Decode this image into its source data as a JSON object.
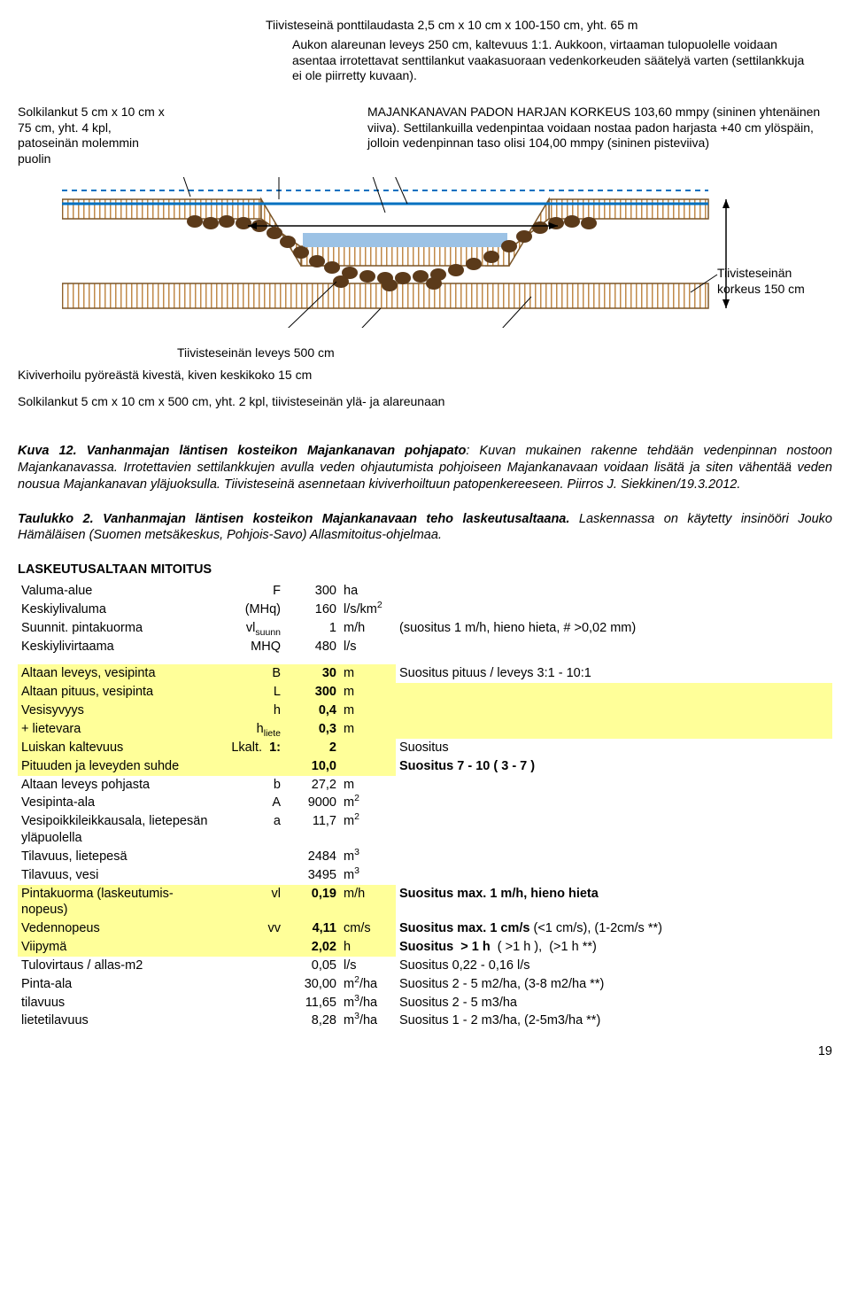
{
  "diagram": {
    "ann1": "Tiivisteseinä ponttilaudasta 2,5 cm x 10 cm x 100-150 cm, yht. 65 m",
    "ann2": "Aukon alareunan leveys 250 cm, kaltevuus 1:1. Aukkoon, virtaaman tulopuolelle voidaan asentaa irrotettavat senttilankut vaakasuoraan vedenkorkeuden säätelyä varten (settilankkuja ei ole piirretty kuvaan).",
    "ann3": "MAJANKANAVAN PADON HARJAN KORKEUS 103,60 mmpy (sininen yhtenäinen viiva). Settilankuilla vedenpintaa voidaan nostaa padon harjasta +40 cm ylöspäin, jolloin vedenpinnan taso olisi 104,00 mmpy (sininen pisteviiva)",
    "ann4": "Solkilankut 5 cm x 10 cm x 75 cm, yht. 4 kpl, patoseinän molemmin puolin",
    "ann5": "Tiivisteseinän korkeus 150 cm",
    "ann6": "Tiivisteseinän leveys 500 cm",
    "ann7": "Kiviverhoilu pyöreästä kivestä, kiven keskikoko 15 cm",
    "ann8": "Solkilankut 5 cm x 10 cm x 500 cm, yht. 2 kpl, tiivisteseinän ylä- ja alareunaan",
    "hatching_color": "#D29B5B",
    "water_color": "#0070C0",
    "rock_color": "#5B3A1A"
  },
  "caption1": {
    "label": "Kuva 12. Vanhanmajan läntisen kosteikon Majankanavan pohjapato",
    "text": ": Kuvan mukainen rakenne tehdään vedenpinnan nostoon Majankanavassa. Irrotettavien settilankkujen avulla veden ohjautumista pohjoiseen Majankanavaan voidaan lisätä ja siten vähentää veden nousua Majankanavan yläjuoksulla. Tiivisteseinä asennetaan kiviverhoiltuun patopenkereeseen. Piirros J. Siekkinen/19.3.2012."
  },
  "caption2": {
    "label": "Taulukko 2. Vanhanmajan läntisen kosteikon Majankanavaan teho laskeutusaltaana.",
    "text": " Laskennassa on käytetty insinööri Jouko Hämäläisen (Suomen metsäkeskus, Pohjois-Savo) Allasmitoitus-ohjelmaa."
  },
  "sectionTitle": "LASKEUTUSALTAAN MITOITUS",
  "rows": {
    "r1": {
      "label": "Valuma-alue",
      "sym": "F",
      "val": "300",
      "unit": "ha"
    },
    "r2": {
      "label": "Keskiylivaluma",
      "sym": "(MHq)",
      "val": "160",
      "unit_html": "l/s/km<sup>2</sup>"
    },
    "r3": {
      "label": "Suunnit. pintakuorma",
      "sym_html": "vl<sub>suunn</sub>",
      "val": "1",
      "unit": "m/h",
      "note": "(suositus 1 m/h, hieno hieta, # >0,02 mm)"
    },
    "r4": {
      "label": "Keskiylivirtaama",
      "sym": "MHQ",
      "val": "480",
      "unit": "l/s"
    },
    "r5": {
      "label": "Altaan leveys, vesipinta",
      "sym": "B",
      "val": "30",
      "unit": "m",
      "note": "Suositus pituus / leveys 3:1 - 10:1",
      "hl": true,
      "bold": true
    },
    "r6": {
      "label": "Altaan pituus, vesipinta",
      "sym": "L",
      "val": "300",
      "unit": "m",
      "hl": true,
      "bold": true,
      "noteless": true
    },
    "r7": {
      "label": "Vesisyvyys",
      "sym": "h",
      "val": "0,4",
      "unit": "m",
      "hl": true,
      "bold": true,
      "noteless": true
    },
    "r8": {
      "label": " + lietevara",
      "sym_html": "h<sub>liete</sub>",
      "val": "0,3",
      "unit": "m",
      "hl": true,
      "bold": true,
      "noteless": true
    },
    "r9": {
      "label": "Luiskan kaltevuus",
      "sym": "Lkalt.",
      "sym2": "1:",
      "val": "2",
      "note": "Suositus",
      "hl": true,
      "bold": true
    },
    "r10": {
      "label": "Pituuden ja leveyden suhde",
      "val": "10,0",
      "note": "Suositus 7 - 10 ( 3 - 7 )",
      "hl": true,
      "bold": true,
      "boldnote": true
    },
    "r11": {
      "label": "Altaan leveys pohjasta",
      "sym": "b",
      "val": "27,2",
      "unit": "m"
    },
    "r12": {
      "label": "Vesipinta-ala",
      "sym": "A",
      "val": "9000",
      "unit_html": "m<sup>2</sup>"
    },
    "r13": {
      "label": "Vesipoikkileikkausala, lietepesän yläpuolella",
      "sym": "a",
      "val": "11,7",
      "unit_html": "m<sup>2</sup>"
    },
    "r14": {
      "label": "Tilavuus, lietepesä",
      "val": "2484",
      "unit_html": "m<sup>3</sup>"
    },
    "r15": {
      "label": "Tilavuus, vesi",
      "val": "3495",
      "unit_html": "m<sup>3</sup>"
    },
    "r16": {
      "label": "Pintakuorma (laskeutumis- nopeus)",
      "sym": "vl",
      "val": "0,19",
      "unit": "m/h",
      "note": "Suositus max. 1 m/h, hieno hieta",
      "hl": true,
      "bold": true,
      "boldnote": true
    },
    "r17": {
      "label": "Vedennopeus",
      "sym": "vv",
      "val": "4,11",
      "unit": "cm/s",
      "note_html": "<b>Suositus max. 1 cm/s</b> (<1 cm/s), (1-2cm/s **)",
      "hl": true,
      "bold": true
    },
    "r18": {
      "label": "Viipymä",
      "val": "2,02",
      "unit": "h",
      "note_html": "<b>Suositus &nbsp;> 1 h</b> &nbsp;( >1 h ), &nbsp;(>1 h **)",
      "hl": true,
      "bold": true
    },
    "r19": {
      "label": "Tulovirtaus / allas-m2",
      "val": "0,05",
      "unit": "l/s",
      "note": "Suositus 0,22 - 0,16 l/s"
    },
    "r20": {
      "label": "Pinta-ala",
      "val": "30,00",
      "unit_html": "m<sup>2</sup>/ha",
      "note": "Suositus 2 - 5 m2/ha, (3-8 m2/ha **)"
    },
    "r21": {
      "label": "tilavuus",
      "val": "11,65",
      "unit_html": "m<sup>3</sup>/ha",
      "note": "Suositus 2 - 5 m3/ha"
    },
    "r22": {
      "label": "lietetilavuus",
      "val": "8,28",
      "unit_html": "m<sup>3</sup>/ha",
      "note": "Suositus 1 - 2 m3/ha, (2-5m3/ha **)"
    }
  },
  "pagenum": "19"
}
